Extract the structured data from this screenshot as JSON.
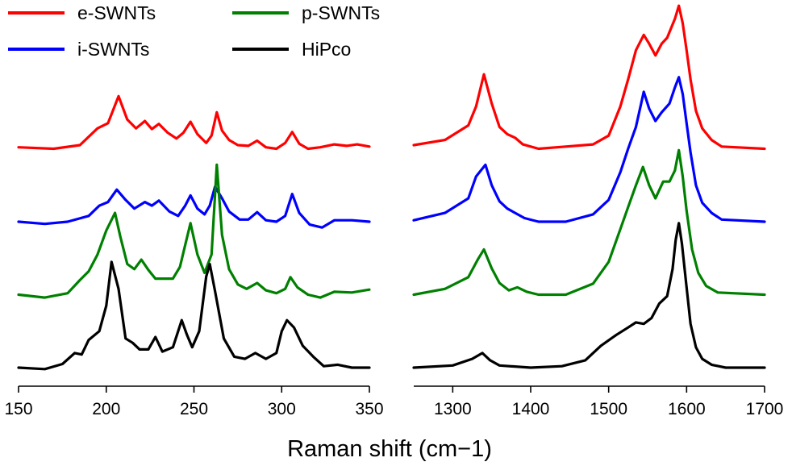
{
  "chart_data": {
    "type": "line",
    "title": "",
    "xlabel": "Raman shift (cm−1)",
    "ylabel": "",
    "panels": [
      {
        "name": "rbm",
        "xlim": [
          150,
          350
        ],
        "xticks": [
          150,
          200,
          250,
          300,
          350
        ],
        "tick_labels": [
          "150",
          "200",
          "250",
          "300",
          "350"
        ]
      },
      {
        "name": "d-g",
        "xlim": [
          1250,
          1700
        ],
        "xticks": [
          1300,
          1400,
          1500,
          1600,
          1700
        ],
        "tick_labels": [
          "1300",
          "1400",
          "1500",
          "1600",
          "1700"
        ]
      }
    ],
    "offset_step": 1,
    "legend": {
      "placement": "top-left",
      "columns": 2
    },
    "series": [
      {
        "name": "e-SWNTs",
        "color": "#ff0000",
        "offset": 3,
        "rbm": [
          [
            150,
            0.02
          ],
          [
            170,
            0.0
          ],
          [
            185,
            0.05
          ],
          [
            195,
            0.28
          ],
          [
            201,
            0.35
          ],
          [
            207,
            0.72
          ],
          [
            212,
            0.4
          ],
          [
            217,
            0.28
          ],
          [
            222,
            0.38
          ],
          [
            226,
            0.27
          ],
          [
            230,
            0.34
          ],
          [
            235,
            0.22
          ],
          [
            240,
            0.14
          ],
          [
            244,
            0.22
          ],
          [
            248,
            0.37
          ],
          [
            252,
            0.2
          ],
          [
            257,
            0.08
          ],
          [
            260,
            0.18
          ],
          [
            263,
            0.5
          ],
          [
            266,
            0.25
          ],
          [
            270,
            0.12
          ],
          [
            275,
            0.05
          ],
          [
            281,
            0.04
          ],
          [
            286,
            0.11
          ],
          [
            291,
            0.02
          ],
          [
            297,
            0.0
          ],
          [
            302,
            0.08
          ],
          [
            306,
            0.23
          ],
          [
            310,
            0.07
          ],
          [
            315,
            0.0
          ],
          [
            322,
            0.02
          ],
          [
            330,
            0.06
          ],
          [
            337,
            0.04
          ],
          [
            343,
            0.06
          ],
          [
            350,
            0.03
          ]
        ],
        "dg": [
          [
            1250,
            0.05
          ],
          [
            1290,
            0.12
          ],
          [
            1320,
            0.32
          ],
          [
            1330,
            0.58
          ],
          [
            1340,
            1.02
          ],
          [
            1350,
            0.62
          ],
          [
            1360,
            0.3
          ],
          [
            1370,
            0.2
          ],
          [
            1380,
            0.15
          ],
          [
            1390,
            0.06
          ],
          [
            1410,
            0.0
          ],
          [
            1445,
            0.03
          ],
          [
            1480,
            0.06
          ],
          [
            1500,
            0.18
          ],
          [
            1515,
            0.58
          ],
          [
            1525,
            0.95
          ],
          [
            1535,
            1.35
          ],
          [
            1545,
            1.56
          ],
          [
            1552,
            1.44
          ],
          [
            1560,
            1.28
          ],
          [
            1568,
            1.44
          ],
          [
            1575,
            1.52
          ],
          [
            1585,
            1.78
          ],
          [
            1590,
            1.96
          ],
          [
            1595,
            1.72
          ],
          [
            1600,
            1.35
          ],
          [
            1605,
            0.95
          ],
          [
            1612,
            0.52
          ],
          [
            1620,
            0.28
          ],
          [
            1632,
            0.12
          ],
          [
            1645,
            0.03
          ],
          [
            1700,
            0.0
          ]
        ]
      },
      {
        "name": "i-SWNTs",
        "color": "#0000ff",
        "offset": 2,
        "rbm": [
          [
            150,
            0.0
          ],
          [
            165,
            -0.03
          ],
          [
            178,
            0.0
          ],
          [
            190,
            0.08
          ],
          [
            196,
            0.22
          ],
          [
            201,
            0.27
          ],
          [
            206,
            0.44
          ],
          [
            211,
            0.3
          ],
          [
            216,
            0.18
          ],
          [
            222,
            0.27
          ],
          [
            226,
            0.22
          ],
          [
            230,
            0.29
          ],
          [
            236,
            0.14
          ],
          [
            241,
            0.08
          ],
          [
            245,
            0.22
          ],
          [
            248,
            0.36
          ],
          [
            252,
            0.18
          ],
          [
            256,
            0.1
          ],
          [
            259,
            0.22
          ],
          [
            262,
            0.48
          ],
          [
            266,
            0.32
          ],
          [
            270,
            0.14
          ],
          [
            276,
            0.03
          ],
          [
            281,
            0.03
          ],
          [
            286,
            0.13
          ],
          [
            291,
            0.02
          ],
          [
            297,
            0.0
          ],
          [
            302,
            0.08
          ],
          [
            306,
            0.38
          ],
          [
            310,
            0.12
          ],
          [
            316,
            -0.04
          ],
          [
            323,
            -0.08
          ],
          [
            330,
            0.02
          ],
          [
            340,
            0.02
          ],
          [
            350,
            0.0
          ]
        ],
        "dg": [
          [
            1250,
            0.02
          ],
          [
            1290,
            0.12
          ],
          [
            1320,
            0.32
          ],
          [
            1330,
            0.62
          ],
          [
            1342,
            0.78
          ],
          [
            1350,
            0.5
          ],
          [
            1360,
            0.28
          ],
          [
            1370,
            0.18
          ],
          [
            1380,
            0.12
          ],
          [
            1392,
            0.05
          ],
          [
            1410,
            0.0
          ],
          [
            1445,
            0.0
          ],
          [
            1480,
            0.1
          ],
          [
            1500,
            0.3
          ],
          [
            1515,
            0.68
          ],
          [
            1525,
            1.0
          ],
          [
            1535,
            1.3
          ],
          [
            1545,
            1.78
          ],
          [
            1552,
            1.55
          ],
          [
            1560,
            1.38
          ],
          [
            1568,
            1.5
          ],
          [
            1578,
            1.62
          ],
          [
            1585,
            1.84
          ],
          [
            1590,
            1.98
          ],
          [
            1595,
            1.75
          ],
          [
            1600,
            1.35
          ],
          [
            1605,
            0.95
          ],
          [
            1612,
            0.5
          ],
          [
            1620,
            0.26
          ],
          [
            1632,
            0.12
          ],
          [
            1645,
            0.03
          ],
          [
            1700,
            0.0
          ]
        ]
      },
      {
        "name": "p-SWNTs",
        "color": "#008000",
        "offset": 1,
        "rbm": [
          [
            150,
            0.0
          ],
          [
            165,
            -0.04
          ],
          [
            178,
            0.02
          ],
          [
            185,
            0.2
          ],
          [
            190,
            0.32
          ],
          [
            195,
            0.55
          ],
          [
            200,
            0.88
          ],
          [
            205,
            1.12
          ],
          [
            208,
            0.8
          ],
          [
            212,
            0.42
          ],
          [
            216,
            0.35
          ],
          [
            220,
            0.48
          ],
          [
            224,
            0.34
          ],
          [
            228,
            0.22
          ],
          [
            233,
            0.22
          ],
          [
            238,
            0.22
          ],
          [
            242,
            0.38
          ],
          [
            245,
            0.68
          ],
          [
            248,
            0.98
          ],
          [
            252,
            0.55
          ],
          [
            256,
            0.3
          ],
          [
            260,
            0.55
          ],
          [
            263,
            1.78
          ],
          [
            266,
            0.82
          ],
          [
            270,
            0.35
          ],
          [
            275,
            0.14
          ],
          [
            280,
            0.08
          ],
          [
            286,
            0.16
          ],
          [
            291,
            0.06
          ],
          [
            297,
            0.02
          ],
          [
            302,
            0.08
          ],
          [
            305,
            0.24
          ],
          [
            309,
            0.1
          ],
          [
            315,
            0.0
          ],
          [
            322,
            -0.04
          ],
          [
            330,
            0.04
          ],
          [
            340,
            0.03
          ],
          [
            350,
            0.07
          ]
        ],
        "dg": [
          [
            1250,
            0.0
          ],
          [
            1290,
            0.08
          ],
          [
            1320,
            0.24
          ],
          [
            1332,
            0.48
          ],
          [
            1340,
            0.62
          ],
          [
            1350,
            0.36
          ],
          [
            1360,
            0.16
          ],
          [
            1372,
            0.06
          ],
          [
            1383,
            0.1
          ],
          [
            1395,
            0.04
          ],
          [
            1410,
            0.0
          ],
          [
            1445,
            0.0
          ],
          [
            1480,
            0.15
          ],
          [
            1500,
            0.45
          ],
          [
            1515,
            0.9
          ],
          [
            1525,
            1.2
          ],
          [
            1535,
            1.5
          ],
          [
            1544,
            1.75
          ],
          [
            1552,
            1.5
          ],
          [
            1560,
            1.32
          ],
          [
            1570,
            1.55
          ],
          [
            1578,
            1.55
          ],
          [
            1585,
            1.7
          ],
          [
            1590,
            1.98
          ],
          [
            1595,
            1.62
          ],
          [
            1600,
            1.15
          ],
          [
            1607,
            0.62
          ],
          [
            1615,
            0.3
          ],
          [
            1625,
            0.12
          ],
          [
            1640,
            0.03
          ],
          [
            1700,
            0.0
          ]
        ]
      },
      {
        "name": "HiPco",
        "color": "#000000",
        "offset": 0,
        "rbm": [
          [
            150,
            0.0
          ],
          [
            165,
            -0.02
          ],
          [
            175,
            0.05
          ],
          [
            182,
            0.2
          ],
          [
            186,
            0.18
          ],
          [
            190,
            0.38
          ],
          [
            196,
            0.5
          ],
          [
            200,
            0.85
          ],
          [
            203,
            1.45
          ],
          [
            207,
            1.08
          ],
          [
            211,
            0.4
          ],
          [
            215,
            0.34
          ],
          [
            219,
            0.25
          ],
          [
            224,
            0.25
          ],
          [
            228,
            0.42
          ],
          [
            232,
            0.22
          ],
          [
            238,
            0.28
          ],
          [
            243,
            0.65
          ],
          [
            246,
            0.45
          ],
          [
            249,
            0.28
          ],
          [
            253,
            0.5
          ],
          [
            257,
            1.25
          ],
          [
            259,
            1.42
          ],
          [
            262,
            1.05
          ],
          [
            267,
            0.4
          ],
          [
            273,
            0.15
          ],
          [
            279,
            0.12
          ],
          [
            285,
            0.2
          ],
          [
            291,
            0.12
          ],
          [
            297,
            0.2
          ],
          [
            300,
            0.5
          ],
          [
            303,
            0.65
          ],
          [
            307,
            0.55
          ],
          [
            312,
            0.3
          ],
          [
            318,
            0.15
          ],
          [
            324,
            0.02
          ],
          [
            332,
            0.04
          ],
          [
            340,
            0.0
          ],
          [
            350,
            0.0
          ]
        ],
        "dg": [
          [
            1250,
            0.0
          ],
          [
            1300,
            0.03
          ],
          [
            1325,
            0.12
          ],
          [
            1338,
            0.2
          ],
          [
            1348,
            0.1
          ],
          [
            1360,
            0.03
          ],
          [
            1400,
            0.0
          ],
          [
            1440,
            0.02
          ],
          [
            1470,
            0.1
          ],
          [
            1490,
            0.3
          ],
          [
            1510,
            0.45
          ],
          [
            1525,
            0.55
          ],
          [
            1535,
            0.62
          ],
          [
            1545,
            0.6
          ],
          [
            1555,
            0.68
          ],
          [
            1565,
            0.88
          ],
          [
            1575,
            0.98
          ],
          [
            1582,
            1.35
          ],
          [
            1586,
            1.75
          ],
          [
            1590,
            1.98
          ],
          [
            1594,
            1.7
          ],
          [
            1600,
            1.1
          ],
          [
            1605,
            0.6
          ],
          [
            1612,
            0.28
          ],
          [
            1620,
            0.12
          ],
          [
            1632,
            0.04
          ],
          [
            1650,
            0.0
          ],
          [
            1700,
            0.0
          ]
        ]
      }
    ]
  }
}
